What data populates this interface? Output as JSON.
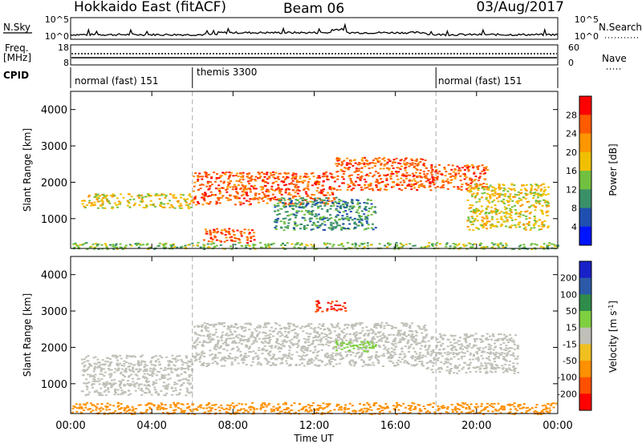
{
  "header": {
    "station": "Hokkaido East (fitACF)",
    "beam": "Beam 06",
    "date": "03/Aug/2017"
  },
  "aux_panels": {
    "nsky_label": "N.Sky",
    "nsky_ticks": [
      "10^5",
      "10^0"
    ],
    "nsearch_label": "N.Search",
    "freq_label_1": "Freq.",
    "freq_label_2": "[MHz]",
    "freq_ticks_left": [
      "18",
      "8"
    ],
    "nave_ticks_right": [
      "60",
      "0"
    ],
    "nave_label": "Nave",
    "cpid_label": "CPID",
    "cpid_segments": [
      "normal (fast) 151",
      "themis 3300",
      "normal (fast) 151"
    ]
  },
  "chart_data": [
    {
      "type": "heatmap",
      "name": "power-panel",
      "ylabel": "Slant Range [km]",
      "xlabel": "",
      "ylim": [
        180,
        4500
      ],
      "yticks": [
        "1000",
        "2000",
        "3000",
        "4000"
      ],
      "x_ticks_hours": [
        0,
        4,
        8,
        12,
        16,
        20,
        24
      ],
      "colorbar_label": "Power [dB]",
      "colorbar_ticks": [
        "28",
        "24",
        "20",
        "16",
        "12",
        "8",
        "4"
      ],
      "colorbar_colors": [
        "#ff0000",
        "#ff5a00",
        "#ff9600",
        "#f0c000",
        "#72c040",
        "#3a9068",
        "#1f4fb0",
        "#0015ff"
      ],
      "scatter_regions": [
        {
          "t": [
            0.5,
            6.0
          ],
          "r": [
            1300,
            1700
          ],
          "value": 20
        },
        {
          "t": [
            6.0,
            13.0
          ],
          "r": [
            1400,
            2300
          ],
          "value": 28
        },
        {
          "t": [
            13.0,
            17.5
          ],
          "r": [
            1800,
            2700
          ],
          "value": 28
        },
        {
          "t": [
            17.5,
            20.5
          ],
          "r": [
            1800,
            2500
          ],
          "value": 28
        },
        {
          "t": [
            6.5,
            9.0
          ],
          "r": [
            350,
            750
          ],
          "value": 28
        },
        {
          "t": [
            19.5,
            23.5
          ],
          "r": [
            700,
            2000
          ],
          "value": 20
        },
        {
          "t": [
            10.0,
            15.0
          ],
          "r": [
            700,
            1600
          ],
          "value": 12
        },
        {
          "t": [
            0.0,
            24.0
          ],
          "r": [
            180,
            360
          ],
          "value": 16
        }
      ]
    },
    {
      "type": "heatmap",
      "name": "velocity-panel",
      "ylabel": "Slant Range [km]",
      "xlabel": "Time UT",
      "ylim": [
        180,
        4500
      ],
      "yticks": [
        "1000",
        "2000",
        "3000",
        "4000"
      ],
      "xticks": [
        "00:00",
        "04:00",
        "08:00",
        "12:00",
        "16:00",
        "20:00",
        "00:00"
      ],
      "x_ticks_hours": [
        0,
        4,
        8,
        12,
        16,
        20,
        24
      ],
      "colorbar_label": "Velocity [m s",
      "colorbar_label_sup": "-1",
      "colorbar_label_end": "]",
      "colorbar_ticks": [
        "200",
        "100",
        "50",
        "15",
        "-15",
        "-50",
        "-100",
        "-200"
      ],
      "colorbar_colors": [
        "#1820c8",
        "#2c5aa8",
        "#2f8c4a",
        "#7ed040",
        "#c0c0b8",
        "#f0c020",
        "#ff9000",
        "#ff5000",
        "#ff0000"
      ],
      "scatter_regions": [
        {
          "t": [
            0.5,
            6.0
          ],
          "r": [
            700,
            1800
          ],
          "value": 0
        },
        {
          "t": [
            6.0,
            17.5
          ],
          "r": [
            1500,
            2700
          ],
          "value": 0
        },
        {
          "t": [
            17.5,
            22.0
          ],
          "r": [
            1300,
            2400
          ],
          "value": 0
        },
        {
          "t": [
            13.0,
            15.0
          ],
          "r": [
            1900,
            2200
          ],
          "value": 40
        },
        {
          "t": [
            12.0,
            13.5
          ],
          "r": [
            3000,
            3300
          ],
          "value": -150
        },
        {
          "t": [
            0.0,
            24.0
          ],
          "r": [
            180,
            500
          ],
          "value": -60
        }
      ]
    }
  ],
  "marker_times_hours": [
    6,
    18
  ]
}
